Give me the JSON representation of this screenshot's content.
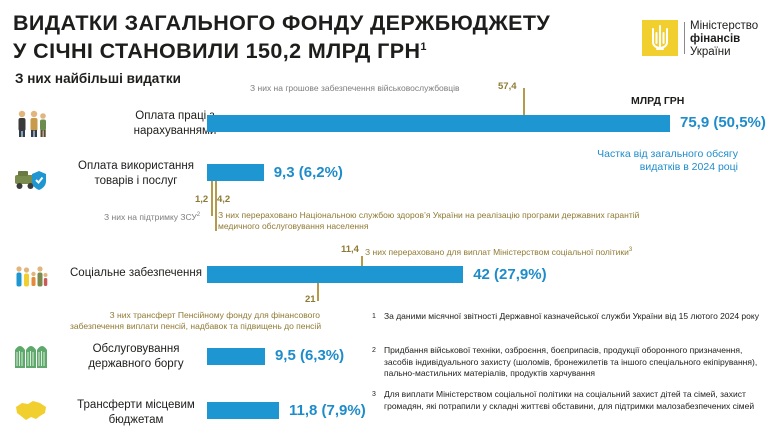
{
  "title": {
    "line1": "ВИДАТКИ ЗАГАЛЬНОГО ФОНДУ ДЕРЖБЮДЖЕТУ",
    "line2": "У СІЧНІ СТАНОВИЛИ 150,2 МЛРД ГРН",
    "sup": "1"
  },
  "logo": {
    "line1": "Міністерство",
    "line2": "фінансів",
    "line3": "України",
    "color": "#f1cf2e"
  },
  "subtitle": "З них найбільші видатки",
  "unit_label": "МЛРД ГРН",
  "share_note": "Частка від загального обсягу видатків в 2024 році",
  "colors": {
    "bar": "#1e96d2",
    "value": "#1e8ccb",
    "gold": "#8f7a34",
    "muted": "#7d7d7d"
  },
  "categories": [
    {
      "label": "Оплата праці з нарахуваннями",
      "value_text": "75,9 (50,5%)",
      "icon": "people-icon"
    },
    {
      "label": "Оплата використання товарів і послуг",
      "value_text": "9,3 (6,2%)",
      "icon": "vehicle-shield-icon"
    },
    {
      "label": "Соціальне забезпечення",
      "value_text": "42 (27,9%)",
      "icon": "family-icon"
    },
    {
      "label": "Обслуговування державного боргу",
      "value_text": "9,5 (6,3%)",
      "icon": "coins-icon"
    },
    {
      "label": "Трансферти місцевим бюджетам",
      "value_text": "11,8 (7,9%)",
      "icon": "ukraine-map-icon"
    }
  ],
  "annotations": {
    "military_note": "З них на грошове забезпечення військовослужбовців",
    "military_value": "57,4",
    "zsu_value": "1,2",
    "zsu_note": "З них на підтримку ЗСУ",
    "zsu_sup": "2",
    "health_value": "4,2",
    "health_note_line1": "З них перераховано Національною службою здоров’я України на реалізацію програми державних гарантій",
    "health_note_line2": "медичного обслуговування населення",
    "minsoc_value": "11,4",
    "minsoc_note": "З них перераховано для виплат Міністерством соціальної політики",
    "minsoc_sup": "3",
    "pension_value": "21",
    "pension_note_line1": "З них трансферт Пенсійному фонду для фінансового",
    "pension_note_line2": "забезпечення виплати пенсій, надбавок та підвищень до пенсій"
  },
  "footnotes": [
    {
      "mark": "1",
      "text": "За даними місячної звітності Державної казначейської служби України від 15 лютого 2024 року"
    },
    {
      "mark": "2",
      "text": "Придбання військової техніки, озброєння, боєприпасів, продукції оборонного призначення, засобів індивідуального захисту (шоломів, бронежилетів та іншого спеціального екіпірування), пально-мастильних матеріалів, продуктів харчування"
    },
    {
      "mark": "3",
      "text": "Для виплати Міністерством соціальної політики на соціальний захист дітей та сімей, захист громадян, які потрапили у складні життєві обставини, для підтримки малозабезпечених сімей"
    }
  ],
  "chart_data": {
    "type": "bar",
    "orientation": "horizontal",
    "title": "ВИДАТКИ ЗАГАЛЬНОГО ФОНДУ ДЕРЖБЮДЖЕТУ У СІЧНІ СТАНОВИЛИ 150,2 МЛРД ГРН",
    "unit": "МЛРД ГРН",
    "total": 150.2,
    "categories": [
      "Оплата праці з нарахуваннями",
      "Оплата використання товарів і послуг",
      "Соціальне забезпечення",
      "Обслуговування державного боргу",
      "Трансферти місцевим бюджетам"
    ],
    "values": [
      75.9,
      9.3,
      42,
      9.5,
      11.8
    ],
    "shares_percent": [
      50.5,
      6.2,
      27.9,
      6.3,
      7.9
    ],
    "sub_values": [
      {
        "category": "Оплата праці з нарахуваннями",
        "value": 57.4,
        "label": "З них на грошове забезпечення військовослужбовців"
      },
      {
        "category": "Оплата використання товарів і послуг",
        "value": 1.2,
        "label": "З них на підтримку ЗСУ"
      },
      {
        "category": "Оплата використання товарів і послуг",
        "value": 4.2,
        "label": "З них перераховано Національною службою здоров’я України на реалізацію програми державних гарантій медичного обслуговування населення"
      },
      {
        "category": "Соціальне забезпечення",
        "value": 11.4,
        "label": "З них перераховано для виплат Міністерством соціальної політики"
      },
      {
        "category": "Соціальне забезпечення",
        "value": 21,
        "label": "З них трансферт Пенсійному фонду для фінансового забезпечення виплати пенсій, надбавок та підвищень до пенсій"
      }
    ]
  }
}
